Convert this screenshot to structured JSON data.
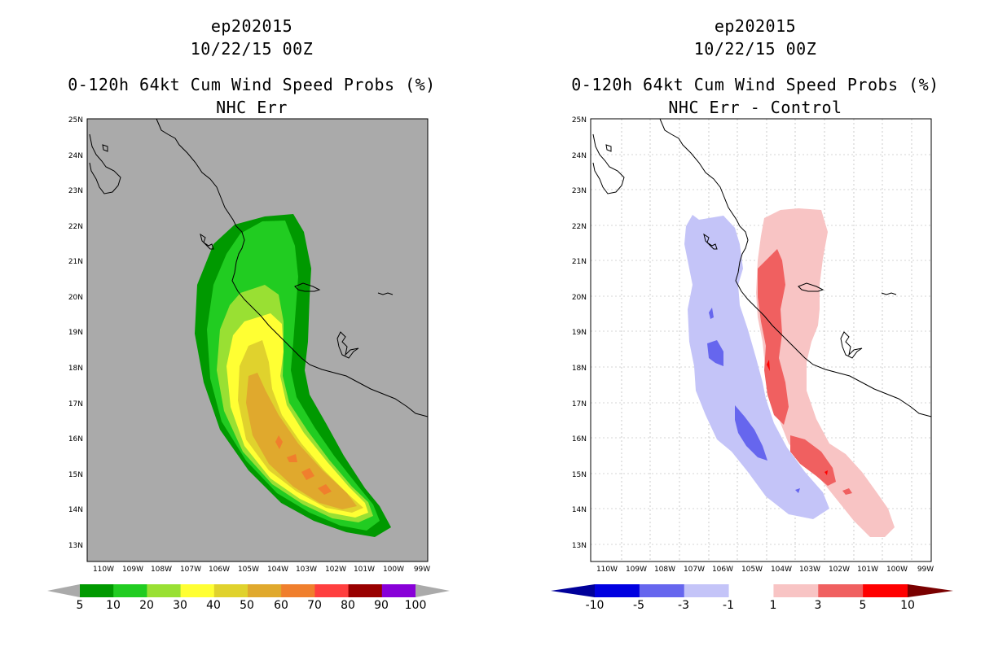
{
  "left_panel": {
    "title_line1": "ep202015",
    "title_line2": "10/22/15 00Z",
    "title_line3": "0-120h 64kt Cum Wind Speed Probs (%)",
    "title_line4": "NHC Err",
    "lat_labels": [
      "25N",
      "24N",
      "23N",
      "22N",
      "21N",
      "20N",
      "19N",
      "18N",
      "17N",
      "16N",
      "15N",
      "14N",
      "13N"
    ],
    "lon_labels": [
      "110W",
      "109W",
      "108W",
      "107W",
      "106W",
      "105W",
      "104W",
      "103W",
      "102W",
      "101W",
      "100W",
      "99W"
    ],
    "colorbar": {
      "colors": [
        "#009900",
        "#21cc21",
        "#99e033",
        "#ffff33",
        "#e0d22d",
        "#e0a92d",
        "#f07f2d",
        "#ff3f3f",
        "#990000",
        "#8800d8"
      ],
      "end_color": "#aaaaaa",
      "labels": [
        "5",
        "10",
        "20",
        "30",
        "40",
        "50",
        "60",
        "70",
        "80",
        "90",
        "100"
      ]
    }
  },
  "right_panel": {
    "title_line1": "ep202015",
    "title_line2": "10/22/15 00Z",
    "title_line3": "0-120h 64kt Cum Wind Speed Probs (%)",
    "title_line4": "NHC Err - Control",
    "lat_labels": [
      "25N",
      "24N",
      "23N",
      "22N",
      "21N",
      "20N",
      "19N",
      "18N",
      "17N",
      "16N",
      "15N",
      "14N",
      "13N"
    ],
    "lon_labels": [
      "110W",
      "109W",
      "108W",
      "107W",
      "106W",
      "105W",
      "104W",
      "103W",
      "102W",
      "101W",
      "100W",
      "99W"
    ],
    "colorbar": {
      "colors": [
        "#0000e0",
        "#6666ee",
        "#c4c4f8",
        "#ffffff",
        "#f8c4c4",
        "#f06060",
        "#ff0000"
      ],
      "start_color": "#00009a",
      "end_color": "#7a0000",
      "labels": [
        "-10",
        "-5",
        "-3",
        "-1",
        "1",
        "3",
        "5",
        "10"
      ]
    }
  },
  "colors": {
    "map_background_left": "#aaaaaa",
    "map_background_right": "#ffffff",
    "coastline": "#000000",
    "grid": "#aaaaaa"
  }
}
